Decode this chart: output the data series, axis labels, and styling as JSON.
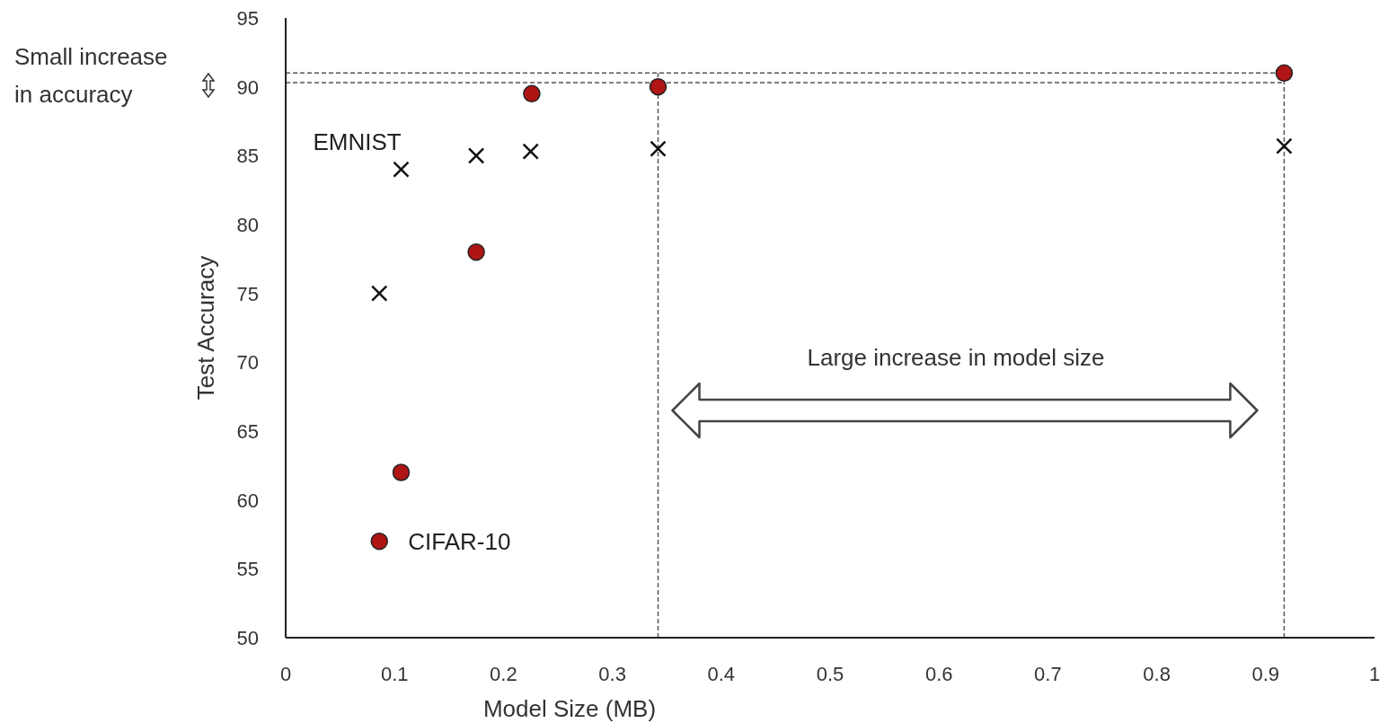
{
  "chart_data": {
    "type": "scatter",
    "xlabel": "Model Size (MB)",
    "ylabel": "Test Accuracy",
    "xlim": [
      0,
      1
    ],
    "xticks": [
      0,
      0.1,
      0.2,
      0.3,
      0.4,
      0.5,
      0.6,
      0.7,
      0.8,
      0.9,
      1
    ],
    "ylim": [
      50,
      95
    ],
    "yticks": [
      50,
      55,
      60,
      65,
      70,
      75,
      80,
      85,
      90,
      95
    ],
    "grid": false,
    "series": [
      {
        "name": "CIFAR-10",
        "color": "#b01515",
        "marker": "circle",
        "x": [
          0.086,
          0.106,
          0.175,
          0.226,
          0.342,
          0.917
        ],
        "values": [
          57,
          62,
          78,
          89.5,
          90,
          91
        ]
      },
      {
        "name": "EMNIST",
        "color": "#111111",
        "marker": "cross",
        "x": [
          0.086,
          0.106,
          0.175,
          0.225,
          0.342,
          0.917
        ],
        "values": [
          75,
          84,
          85,
          85.3,
          85.5,
          85.7
        ]
      }
    ],
    "ref_lines": [
      {
        "axis": "y",
        "value": 91,
        "color": "#555555",
        "line_style": "dashed"
      },
      {
        "axis": "y",
        "value": 90.3,
        "color": "#555555",
        "line_style": "dashed"
      },
      {
        "axis": "x",
        "value": 0.342,
        "color": "#555555",
        "line_style": "dashed"
      },
      {
        "axis": "x",
        "value": 0.917,
        "color": "#555555",
        "line_style": "dashed"
      }
    ],
    "annotations": [
      "Small increase in accuracy",
      "Large increase in model size"
    ]
  }
}
